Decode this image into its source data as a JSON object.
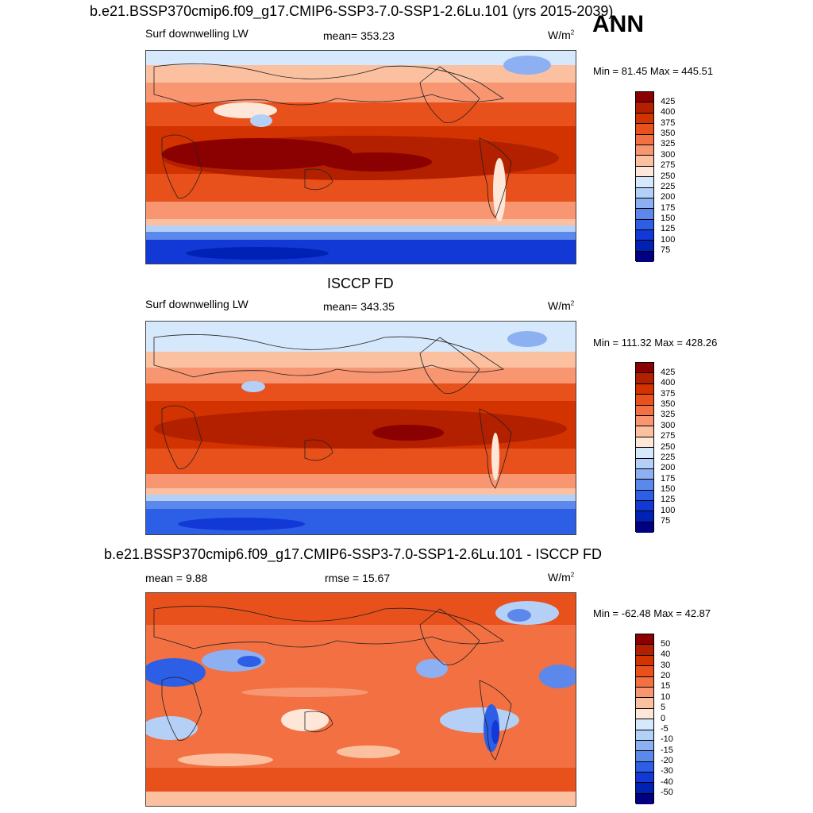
{
  "header": {
    "case_title": "b.e21.BSSP370cmip6.f09_g17.CMIP6-SSP3-7.0-SSP1-2.6Lu.101 (yrs 2015-2039)",
    "season": "ANN"
  },
  "panels": [
    {
      "title": "",
      "left_label": "Surf downwelling LW",
      "center_label": "mean= 353.23",
      "units": "W/m",
      "units_sup": "2",
      "minmax": "Min =  81.45 Max = 445.51",
      "colorbar_labels": [
        "425",
        "400",
        "375",
        "350",
        "325",
        "300",
        "275",
        "250",
        "225",
        "200",
        "175",
        "150",
        "125",
        "100",
        "75"
      ]
    },
    {
      "title": "ISCCP FD",
      "left_label": "Surf downwelling LW",
      "center_label": "mean= 343.35",
      "units": "W/m",
      "units_sup": "2",
      "minmax": "Min = 111.32 Max = 428.26",
      "colorbar_labels": [
        "425",
        "400",
        "375",
        "350",
        "325",
        "300",
        "275",
        "250",
        "225",
        "200",
        "175",
        "150",
        "125",
        "100",
        "75"
      ]
    },
    {
      "title": "b.e21.BSSP370cmip6.f09_g17.CMIP6-SSP3-7.0-SSP1-2.6Lu.101 - ISCCP FD",
      "left_label": "mean =   9.88",
      "center_label": "rmse =  15.67",
      "units": "W/m",
      "units_sup": "2",
      "minmax": "Min = -62.48 Max =  42.87",
      "colorbar_labels": [
        "50",
        "40",
        "30",
        "20",
        "15",
        "10",
        "5",
        "0",
        "-5",
        "-10",
        "-15",
        "-20",
        "-30",
        "-40",
        "-50"
      ]
    }
  ],
  "colors": {
    "scale": [
      "#8b0000",
      "#b22000",
      "#d23300",
      "#e8501c",
      "#f27042",
      "#f79670",
      "#fbc0a0",
      "#fee6d8",
      "#d6e8fb",
      "#b4d0f6",
      "#8cb0f1",
      "#5c88ec",
      "#2d5ee6",
      "#1238d6",
      "#0022b4",
      "#000080"
    ]
  }
}
